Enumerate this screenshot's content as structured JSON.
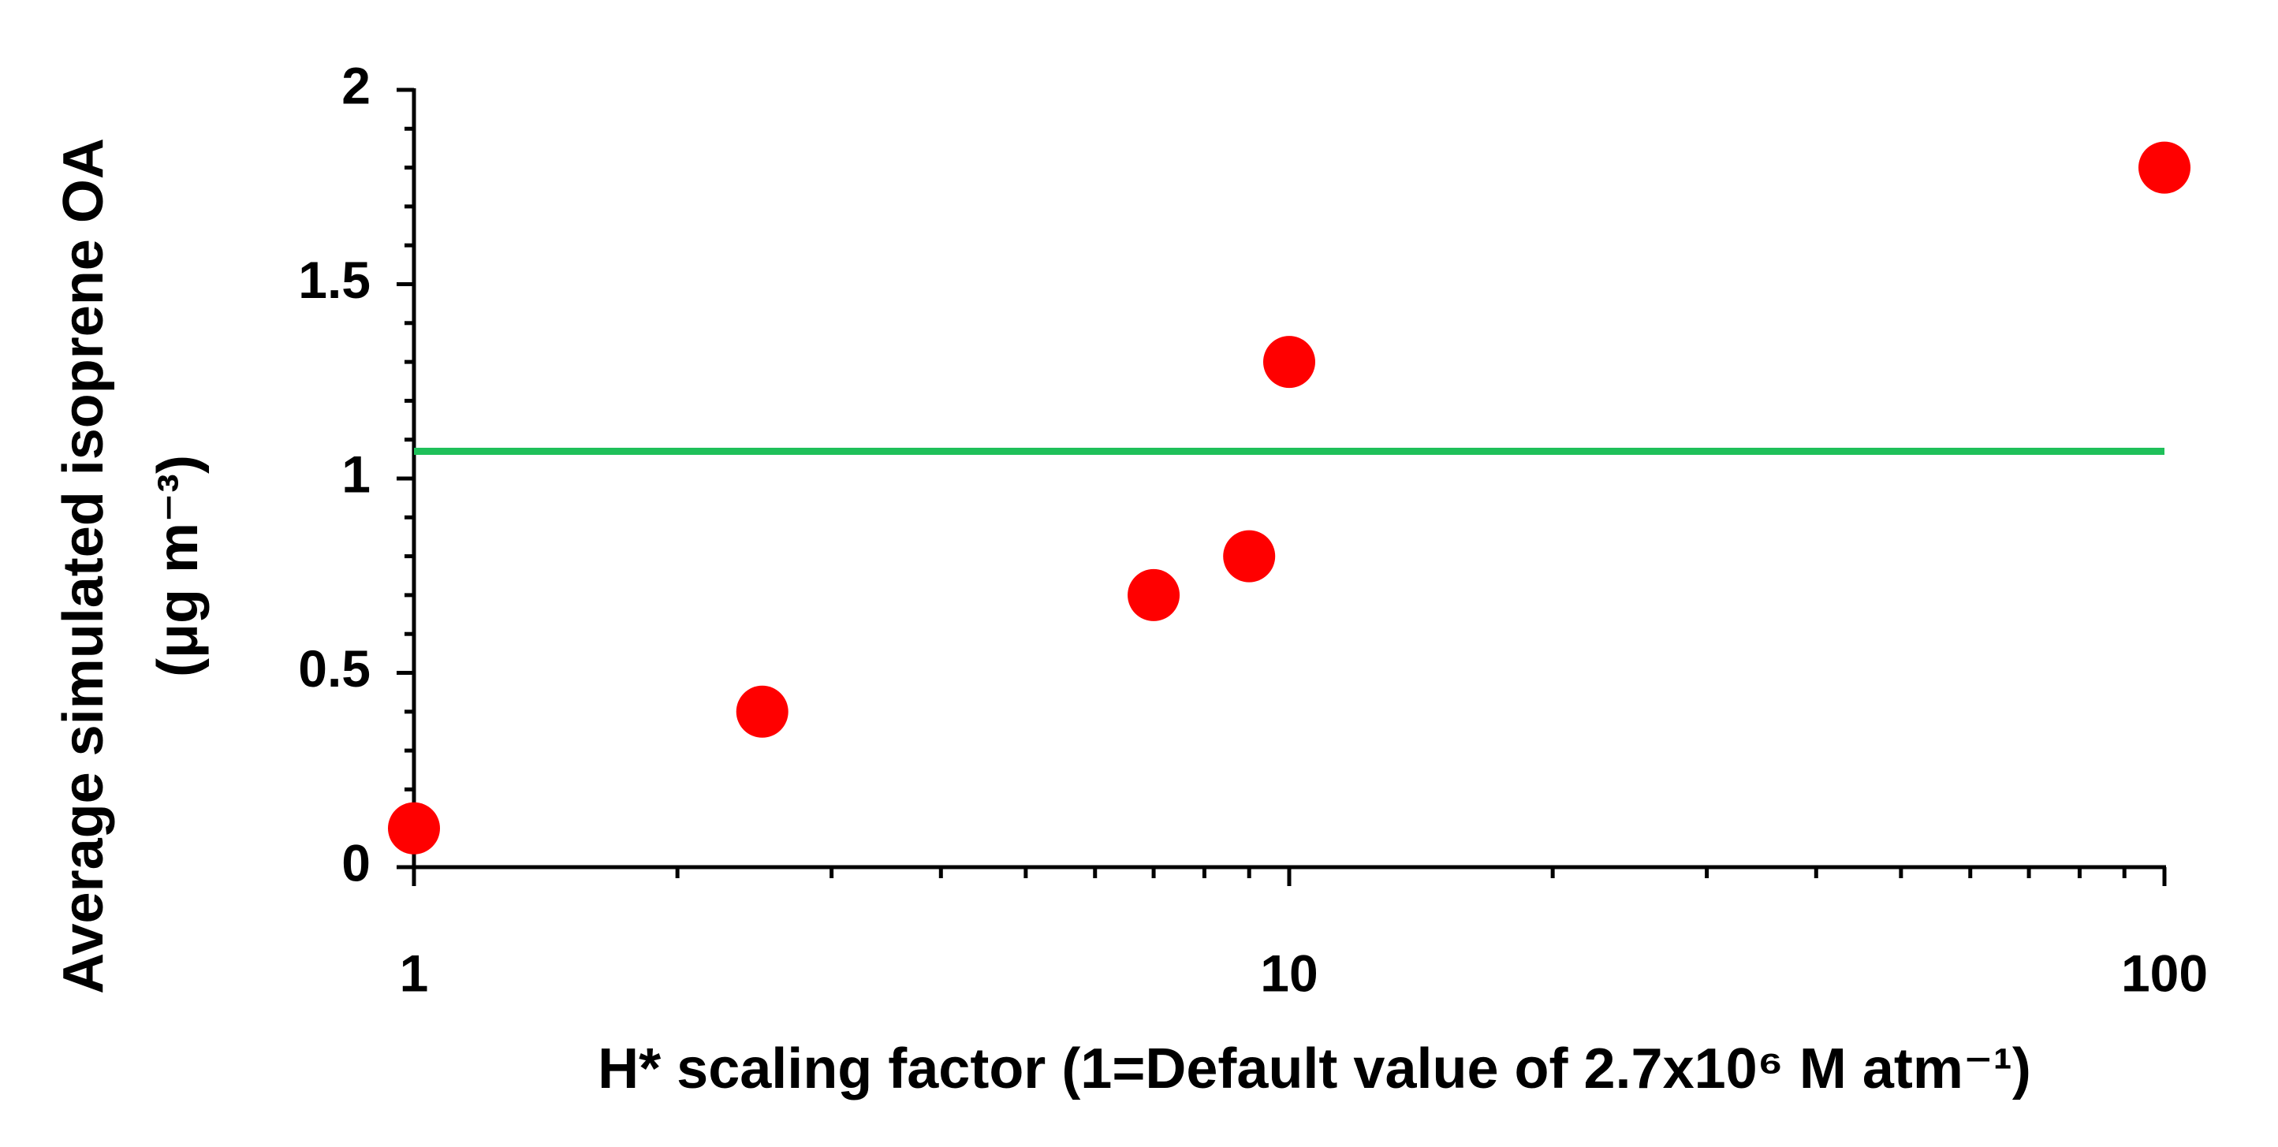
{
  "chart_data": {
    "type": "scatter",
    "xlabel": "H* scaling factor (1=Default value of 2.7x10⁶  M atm⁻¹)",
    "ylabel": [
      "Average simulated isoprene OA",
      "(μg m⁻³)"
    ],
    "x": [
      1,
      2.5,
      7,
      9,
      10,
      100
    ],
    "values": [
      0.1,
      0.4,
      0.7,
      0.8,
      1.3,
      1.8
    ],
    "color": "#ff0000",
    "hline": {
      "value": 1.07,
      "color": "#1fc05a"
    },
    "xscale": "log",
    "xlim": [
      1,
      100
    ],
    "xticks": [
      1,
      10,
      100
    ],
    "ylim": [
      0,
      2
    ],
    "yticks": [
      0,
      0.5,
      1,
      1.5,
      2
    ]
  }
}
